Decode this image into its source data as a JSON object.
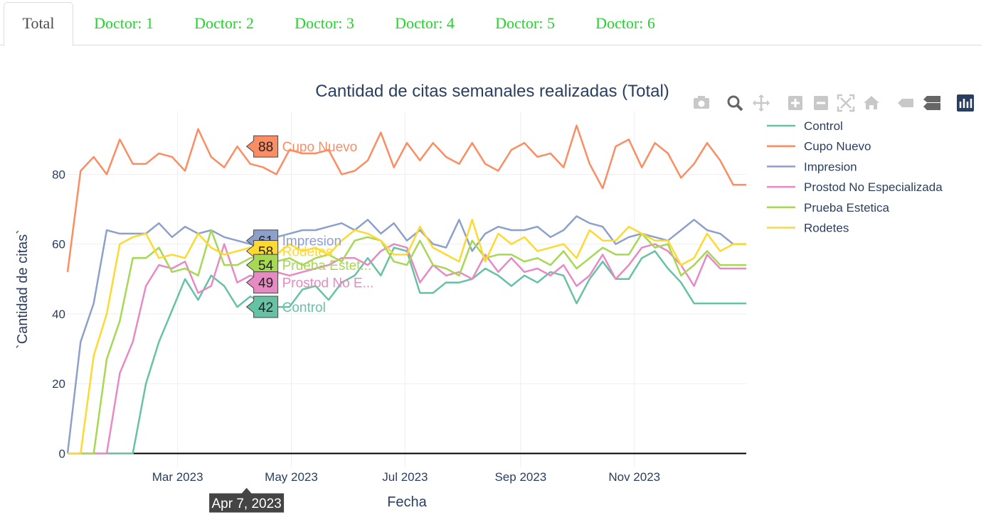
{
  "tabs": [
    {
      "label": "Total",
      "active": true
    },
    {
      "label": "Doctor: 1",
      "active": false
    },
    {
      "label": "Doctor: 2",
      "active": false
    },
    {
      "label": "Doctor: 3",
      "active": false
    },
    {
      "label": "Doctor: 4",
      "active": false
    },
    {
      "label": "Doctor: 5",
      "active": false
    },
    {
      "label": "Doctor: 6",
      "active": false
    }
  ],
  "colors": {
    "tab_text": "#21d62a",
    "tab_active_text": "#4d4d4d",
    "grid": "#eeeeee",
    "zero_line": "#000000",
    "modebar_icon": "#c8c8c8",
    "modebar_active": "#2a3f5f"
  },
  "modebar": {
    "icons": [
      "camera-icon",
      "zoom-icon",
      "pan-icon",
      "zoom-in-icon",
      "zoom-out-icon",
      "autoscale-icon",
      "reset-axes-icon",
      "spike-lines-icon",
      "compare-hover-icon",
      "plotly-logo-icon"
    ]
  },
  "chart_data": {
    "type": "line",
    "title": "Cantidad de citas semanales realizadas (Total)",
    "xlabel": "Fecha",
    "ylabel": "`Cantidad de citas`",
    "x_tick_labels": [
      "Mar 2023",
      "May 2023",
      "Jul 2023",
      "Sep 2023",
      "Nov 2023"
    ],
    "x_tick_dates": [
      "2023-03-01",
      "2023-05-01",
      "2023-07-01",
      "2023-09-01",
      "2023-11-01"
    ],
    "y_tick_labels": [
      "0",
      "20",
      "40",
      "60",
      "80"
    ],
    "ylim": [
      -4,
      98
    ],
    "x_range": [
      "2023-01-01",
      "2023-12-31"
    ],
    "grid": true,
    "legend_position": "right",
    "hover": {
      "date_label": "Apr 7, 2023",
      "date": "2023-04-07",
      "points": [
        {
          "series": "Cupo Nuevo",
          "value": "88",
          "label": "Cupo Nuevo"
        },
        {
          "series": "Impresion",
          "value": "61",
          "label": "Impresion"
        },
        {
          "series": "Rodetes",
          "value": "58",
          "label": "Rodetes"
        },
        {
          "series": "Prueba Estetica",
          "value": "54",
          "label": "Prueba Estet..."
        },
        {
          "series": "Prostod No Especializada",
          "value": "49",
          "label": "Prostod No E..."
        },
        {
          "series": "Control",
          "value": "42",
          "label": "Control"
        }
      ]
    },
    "x": [
      "2023-01-01",
      "2023-01-08",
      "2023-01-15",
      "2023-01-22",
      "2023-01-29",
      "2023-02-05",
      "2023-02-12",
      "2023-02-19",
      "2023-02-26",
      "2023-03-05",
      "2023-03-12",
      "2023-03-19",
      "2023-03-26",
      "2023-04-02",
      "2023-04-09",
      "2023-04-16",
      "2023-04-23",
      "2023-04-30",
      "2023-05-07",
      "2023-05-14",
      "2023-05-21",
      "2023-05-28",
      "2023-06-04",
      "2023-06-11",
      "2023-06-18",
      "2023-06-25",
      "2023-07-02",
      "2023-07-09",
      "2023-07-16",
      "2023-07-23",
      "2023-07-30",
      "2023-08-06",
      "2023-08-13",
      "2023-08-20",
      "2023-08-27",
      "2023-09-03",
      "2023-09-10",
      "2023-09-17",
      "2023-09-24",
      "2023-10-01",
      "2023-10-08",
      "2023-10-15",
      "2023-10-22",
      "2023-10-29",
      "2023-11-05",
      "2023-11-12",
      "2023-11-19",
      "2023-11-26",
      "2023-12-03",
      "2023-12-10",
      "2023-12-17",
      "2023-12-24",
      "2023-12-31"
    ],
    "series": [
      {
        "name": "Control",
        "color": "#66c2a5",
        "values": [
          0,
          0,
          0,
          0,
          0,
          0,
          20,
          32,
          41,
          50,
          44,
          51,
          48,
          42,
          45,
          43,
          42,
          42,
          47,
          48,
          44,
          49,
          51,
          56,
          51,
          59,
          58,
          46,
          46,
          49,
          49,
          50,
          53,
          51,
          48,
          51,
          49,
          52,
          51,
          43,
          50,
          55,
          50,
          50,
          56,
          58,
          53,
          49,
          43,
          43,
          43,
          43,
          43
        ]
      },
      {
        "name": "Cupo Nuevo",
        "color": "#fc8d62",
        "values": [
          52,
          81,
          85,
          80,
          90,
          83,
          83,
          86,
          85,
          81,
          93,
          85,
          82,
          88,
          83,
          82,
          80,
          87,
          86,
          86,
          87,
          80,
          81,
          84,
          92,
          82,
          89,
          84,
          89,
          85,
          83,
          89,
          83,
          81,
          87,
          89,
          85,
          86,
          82,
          94,
          83,
          76,
          88,
          90,
          82,
          89,
          86,
          79,
          83,
          89,
          84,
          77,
          77
        ]
      },
      {
        "name": "Impresion",
        "color": "#8da0cb",
        "values": [
          0,
          32,
          43,
          64,
          63,
          63,
          63,
          66,
          62,
          65,
          63,
          64,
          62,
          61,
          60,
          60,
          62,
          63,
          64,
          64,
          65,
          66,
          64,
          67,
          63,
          66,
          61,
          64,
          60,
          59,
          67,
          58,
          63,
          65,
          64,
          64,
          65,
          62,
          64,
          68,
          66,
          65,
          60,
          62,
          63,
          62,
          61,
          64,
          67,
          64,
          63,
          60,
          60
        ]
      },
      {
        "name": "Prostod No Especializada",
        "color": "#e78ac3",
        "values": [
          0,
          0,
          0,
          0,
          23,
          32,
          48,
          54,
          53,
          55,
          46,
          48,
          60,
          49,
          51,
          50,
          52,
          51,
          52,
          53,
          54,
          56,
          56,
          54,
          58,
          60,
          59,
          49,
          54,
          51,
          52,
          50,
          57,
          52,
          56,
          52,
          53,
          51,
          54,
          48,
          51,
          57,
          50,
          54,
          59,
          60,
          58,
          54,
          48,
          57,
          53,
          53,
          53
        ]
      },
      {
        "name": "Prueba Estetica",
        "color": "#a6d854",
        "values": [
          0,
          0,
          0,
          27,
          38,
          56,
          56,
          59,
          52,
          53,
          51,
          64,
          54,
          54,
          56,
          56,
          55,
          56,
          54,
          56,
          57,
          55,
          61,
          62,
          61,
          55,
          54,
          61,
          54,
          53,
          51,
          61,
          56,
          57,
          57,
          55,
          56,
          54,
          58,
          53,
          56,
          59,
          57,
          57,
          63,
          59,
          60,
          51,
          54,
          58,
          54,
          54,
          54
        ]
      },
      {
        "name": "Rodetes",
        "color": "#ffd92f",
        "values": [
          0,
          0,
          28,
          40,
          60,
          62,
          63,
          56,
          57,
          56,
          63,
          59,
          57,
          58,
          59,
          58,
          57,
          60,
          58,
          59,
          57,
          61,
          64,
          63,
          61,
          57,
          57,
          65,
          59,
          57,
          55,
          67,
          55,
          63,
          60,
          62,
          58,
          59,
          60,
          56,
          64,
          61,
          61,
          65,
          63,
          61,
          61,
          54,
          56,
          63,
          58,
          60,
          60
        ]
      }
    ]
  }
}
